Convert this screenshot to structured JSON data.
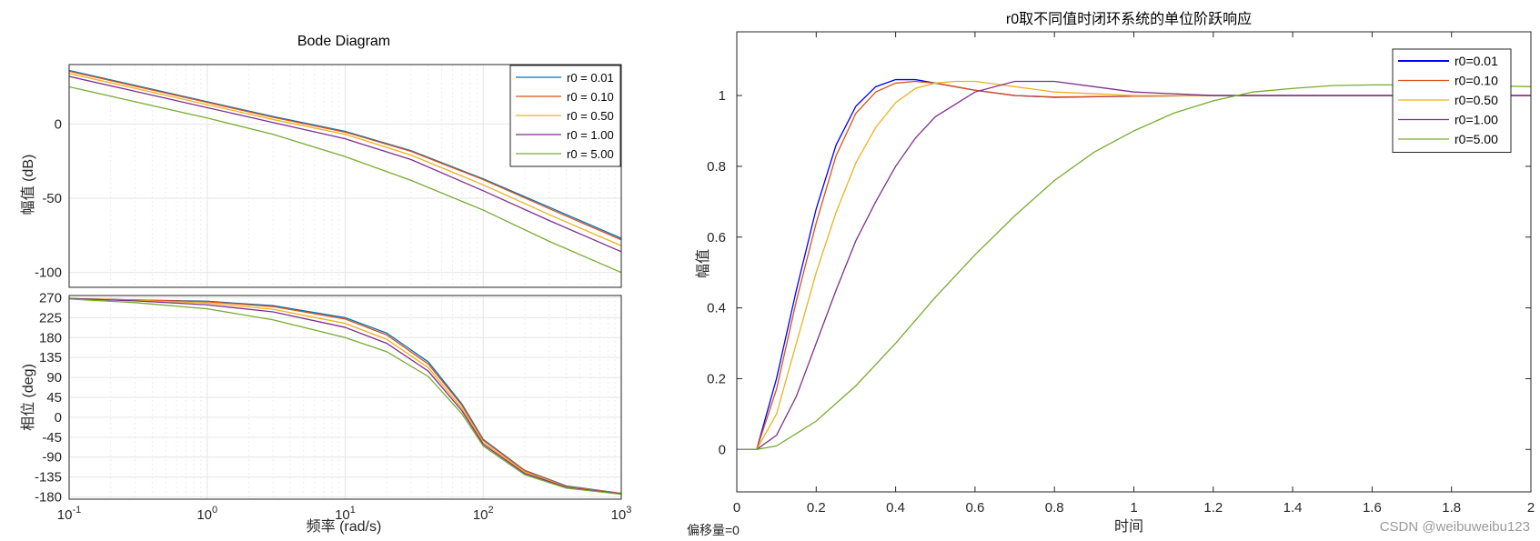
{
  "colors": {
    "bode": [
      "#0072BD",
      "#D95319",
      "#EDB120",
      "#7E2F8E",
      "#77AC30"
    ],
    "step": [
      "#0000FF",
      "#D95319",
      "#EDB120",
      "#7E2F8E",
      "#77AC30"
    ]
  },
  "chart_data": [
    {
      "type": "line",
      "title": "Bode Diagram",
      "xlabel": "频率  (rad/s)",
      "xscale": "log",
      "xlim": [
        0.1,
        1000
      ],
      "x_ticks": [
        {
          "base": "10",
          "exp": "-1"
        },
        {
          "base": "10",
          "exp": "0"
        },
        {
          "base": "10",
          "exp": "1"
        },
        {
          "base": "10",
          "exp": "2"
        },
        {
          "base": "10",
          "exp": "3"
        }
      ],
      "grid": true,
      "legend_position": "top-right",
      "panels": [
        {
          "name": "magnitude",
          "ylabel": "幅值 (dB)",
          "ylim": [
            -110,
            40
          ],
          "yticks": [
            0,
            -50,
            -100
          ],
          "ytick_labels": [
            "0",
            "-50",
            "-100"
          ],
          "x": [
            0.1,
            0.3,
            1,
            3,
            10,
            30,
            100,
            300,
            1000
          ],
          "series": [
            {
              "name": "r0 = 0.01",
              "values": [
                36,
                26,
                15,
                5,
                -5,
                -18,
                -37,
                -56,
                -77
              ]
            },
            {
              "name": "r0 = 0.10",
              "values": [
                35.5,
                25.5,
                14.5,
                4.5,
                -5.5,
                -18.5,
                -37.5,
                -57,
                -78
              ]
            },
            {
              "name": "r0 = 0.50",
              "values": [
                34,
                24,
                13,
                3,
                -7,
                -21,
                -41,
                -61,
                -82
              ]
            },
            {
              "name": "r0 = 1.00",
              "values": [
                32,
                22,
                11,
                1,
                -10,
                -24,
                -45,
                -65,
                -86
              ]
            },
            {
              "name": "r0 = 5.00",
              "values": [
                25,
                15,
                4,
                -7,
                -22,
                -38,
                -58,
                -79,
                -100
              ]
            }
          ]
        },
        {
          "name": "phase",
          "ylabel": "相位 (deg)",
          "ylim": [
            -185,
            275
          ],
          "yticks": [
            270,
            225,
            180,
            135,
            90,
            45,
            0,
            -45,
            -90,
            -135,
            -180
          ],
          "ytick_labels": [
            "270",
            "225",
            "180",
            "135",
            "90",
            "45",
            "0",
            "-45",
            "-90",
            "-135",
            "-180"
          ],
          "x": [
            0.1,
            0.3,
            1,
            3,
            10,
            20,
            40,
            70,
            100,
            200,
            400,
            1000
          ],
          "series": [
            {
              "name": "r0 = 0.01",
              "values": [
                268,
                265,
                262,
                252,
                225,
                190,
                125,
                30,
                -50,
                -120,
                -155,
                -172
              ]
            },
            {
              "name": "r0 = 0.10",
              "values": [
                268,
                265,
                261,
                250,
                222,
                186,
                120,
                27,
                -52,
                -121,
                -156,
                -172
              ]
            },
            {
              "name": "r0 = 0.50",
              "values": [
                268,
                264,
                258,
                244,
                212,
                176,
                112,
                20,
                -57,
                -124,
                -157,
                -173
              ]
            },
            {
              "name": "r0 = 1.00",
              "values": [
                268,
                263,
                254,
                238,
                203,
                167,
                104,
                15,
                -61,
                -127,
                -158,
                -173
              ]
            },
            {
              "name": "r0 = 5.00",
              "values": [
                267,
                259,
                245,
                220,
                180,
                148,
                92,
                8,
                -65,
                -130,
                -160,
                -174
              ]
            }
          ]
        }
      ]
    },
    {
      "type": "line",
      "title": "r0取不同值时闭环系统的单位阶跃响应",
      "xlabel": "时间",
      "ylabel": "幅值",
      "xlim": [
        0,
        2
      ],
      "ylim": [
        -0.12,
        1.18
      ],
      "xticks": [
        0,
        0.2,
        0.4,
        0.6,
        0.8,
        1,
        1.2,
        1.4,
        1.6,
        1.8,
        2
      ],
      "xtick_labels": [
        "0",
        "0.2",
        "0.4",
        "0.6",
        "0.8",
        "1",
        "1.2",
        "1.4",
        "1.6",
        "1.8",
        "2"
      ],
      "yticks": [
        0,
        0.2,
        0.4,
        0.6,
        0.8,
        1
      ],
      "ytick_labels": [
        "0",
        "0.2",
        "0.4",
        "0.6",
        "0.8",
        "1"
      ],
      "grid": false,
      "legend_position": "top-right",
      "series": [
        {
          "name": "r0=0.01",
          "x": [
            0,
            0.05,
            0.1,
            0.15,
            0.2,
            0.25,
            0.3,
            0.35,
            0.4,
            0.45,
            0.5,
            0.6,
            0.7,
            0.8,
            1.0,
            1.2,
            2.0
          ],
          "values": [
            0,
            0,
            0.2,
            0.45,
            0.68,
            0.86,
            0.97,
            1.025,
            1.045,
            1.045,
            1.035,
            1.015,
            1.0,
            0.995,
            0.998,
            1.0,
            1.0
          ]
        },
        {
          "name": "r0=0.10",
          "x": [
            0,
            0.05,
            0.1,
            0.15,
            0.2,
            0.25,
            0.3,
            0.35,
            0.4,
            0.45,
            0.5,
            0.6,
            0.7,
            0.8,
            1.0,
            1.2,
            2.0
          ],
          "values": [
            0,
            0,
            0.17,
            0.42,
            0.64,
            0.83,
            0.95,
            1.01,
            1.035,
            1.04,
            1.035,
            1.015,
            1.0,
            0.996,
            0.998,
            1.0,
            1.0
          ]
        },
        {
          "name": "r0=0.50",
          "x": [
            0,
            0.05,
            0.1,
            0.15,
            0.2,
            0.25,
            0.3,
            0.35,
            0.4,
            0.45,
            0.5,
            0.55,
            0.6,
            0.7,
            0.8,
            1.0,
            1.2,
            2.0
          ],
          "values": [
            0,
            0,
            0.1,
            0.3,
            0.5,
            0.67,
            0.81,
            0.91,
            0.98,
            1.02,
            1.035,
            1.04,
            1.04,
            1.025,
            1.01,
            1.0,
            1.0,
            1.0
          ]
        },
        {
          "name": "r0=1.00",
          "x": [
            0,
            0.05,
            0.1,
            0.15,
            0.2,
            0.25,
            0.3,
            0.35,
            0.4,
            0.45,
            0.5,
            0.6,
            0.7,
            0.8,
            0.9,
            1.0,
            1.2,
            1.4,
            2.0
          ],
          "values": [
            0,
            0,
            0.04,
            0.15,
            0.3,
            0.45,
            0.59,
            0.7,
            0.8,
            0.88,
            0.94,
            1.01,
            1.04,
            1.04,
            1.025,
            1.01,
            1.0,
            1.0,
            1.0
          ]
        },
        {
          "name": "r0=5.00",
          "x": [
            0,
            0.05,
            0.1,
            0.2,
            0.3,
            0.4,
            0.5,
            0.6,
            0.7,
            0.8,
            0.9,
            1.0,
            1.1,
            1.2,
            1.3,
            1.4,
            1.5,
            1.6,
            1.8,
            2.0
          ],
          "values": [
            0,
            0,
            0.01,
            0.08,
            0.18,
            0.3,
            0.43,
            0.55,
            0.66,
            0.76,
            0.84,
            0.9,
            0.95,
            0.985,
            1.01,
            1.02,
            1.028,
            1.03,
            1.03,
            1.025
          ]
        }
      ]
    }
  ],
  "footer": {
    "offset_label": "偏移量=0",
    "watermark": "CSDN @weibuweibu123"
  }
}
